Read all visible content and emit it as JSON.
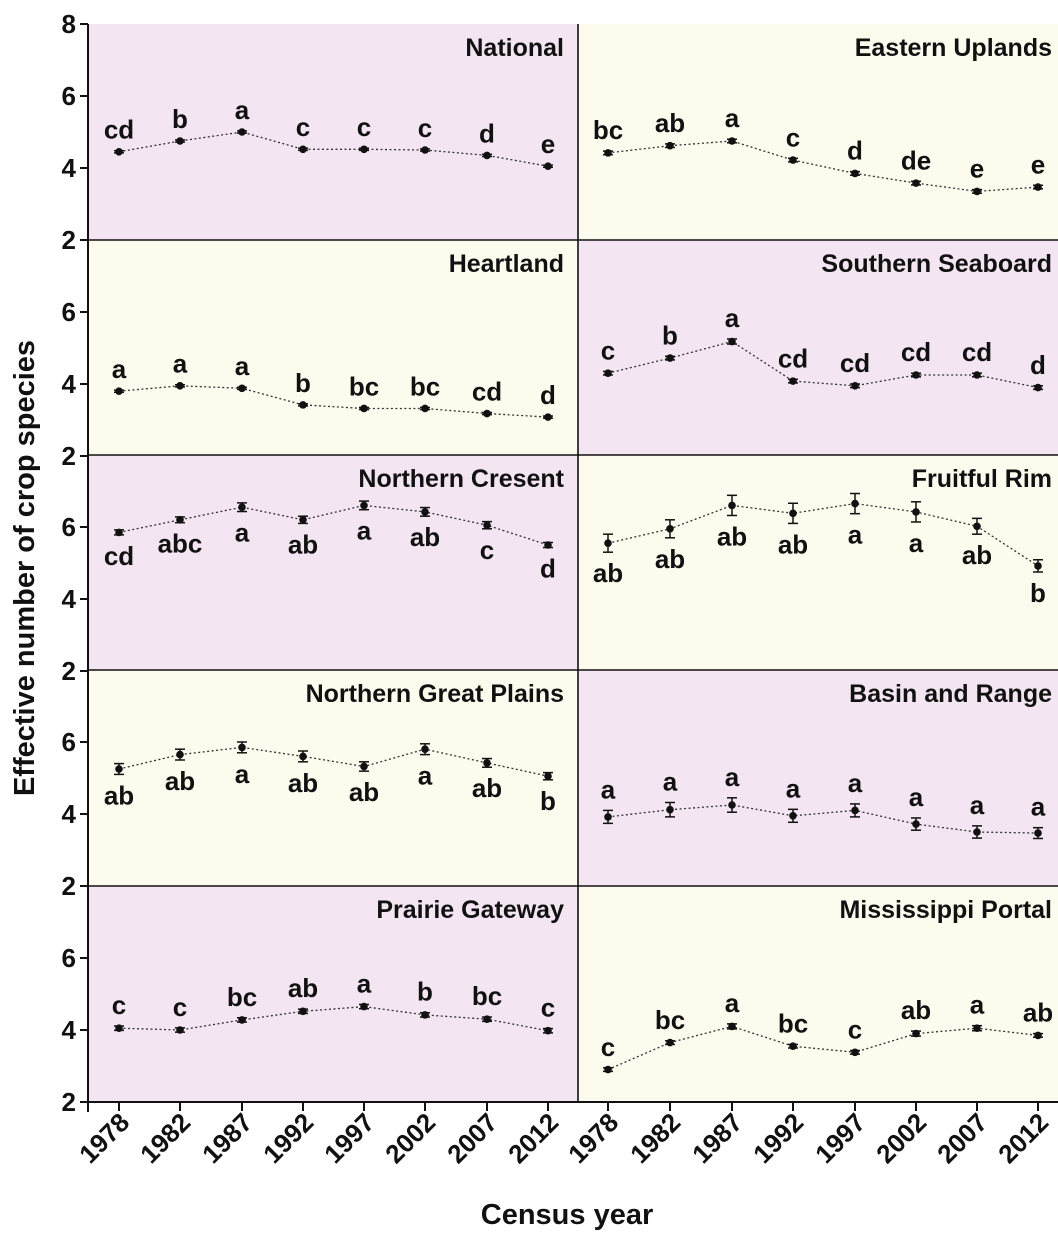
{
  "colors": {
    "pink": "#f3e5f1",
    "yellow": "#fcfbed",
    "line": "#333333",
    "point": "#111111"
  },
  "chart_data": {
    "type": "line",
    "xlabel": "Census year",
    "ylabel": "Effective number of crop species",
    "x": [
      "1978",
      "1982",
      "1987",
      "1992",
      "1997",
      "2002",
      "2007",
      "2012"
    ],
    "yticks": [
      "2",
      "4",
      "6",
      "8"
    ],
    "ylim": [
      2,
      8
    ],
    "grid": false,
    "panels": [
      {
        "title": "National",
        "background": "pink",
        "values": [
          4.45,
          4.75,
          5.0,
          4.52,
          4.52,
          4.5,
          4.35,
          4.05
        ],
        "err": [
          0.03,
          0.03,
          0.03,
          0.03,
          0.03,
          0.03,
          0.03,
          0.03
        ],
        "letters": [
          "cd",
          "b",
          "a",
          "c",
          "c",
          "c",
          "d",
          "e"
        ],
        "letter_pos": "above"
      },
      {
        "title": "Eastern Uplands",
        "background": "yellow",
        "values": [
          4.42,
          4.62,
          4.75,
          4.22,
          3.85,
          3.58,
          3.35,
          3.47
        ],
        "err": [
          0.05,
          0.05,
          0.05,
          0.05,
          0.05,
          0.05,
          0.05,
          0.05
        ],
        "letters": [
          "bc",
          "ab",
          "a",
          "c",
          "d",
          "de",
          "e",
          "e"
        ],
        "letter_pos": "above"
      },
      {
        "title": "Heartland",
        "background": "yellow",
        "values": [
          3.8,
          3.95,
          3.88,
          3.42,
          3.32,
          3.32,
          3.18,
          3.08
        ],
        "err": [
          0.03,
          0.03,
          0.03,
          0.03,
          0.03,
          0.03,
          0.03,
          0.03
        ],
        "letters": [
          "a",
          "a",
          "a",
          "b",
          "bc",
          "bc",
          "cd",
          "d"
        ],
        "letter_pos": "above"
      },
      {
        "title": "Southern Seaboard",
        "background": "pink",
        "values": [
          4.3,
          4.72,
          5.18,
          4.08,
          3.95,
          4.25,
          4.25,
          3.9
        ],
        "err": [
          0.05,
          0.05,
          0.07,
          0.05,
          0.05,
          0.05,
          0.05,
          0.05
        ],
        "letters": [
          "c",
          "b",
          "a",
          "cd",
          "cd",
          "cd",
          "cd",
          "d"
        ],
        "letter_pos": "above"
      },
      {
        "title": "Northern Cresent",
        "background": "pink",
        "values": [
          5.85,
          6.2,
          6.55,
          6.2,
          6.6,
          6.42,
          6.05,
          5.5
        ],
        "err": [
          0.07,
          0.08,
          0.12,
          0.1,
          0.12,
          0.12,
          0.1,
          0.07
        ],
        "letters": [
          "cd",
          "abc",
          "a",
          "ab",
          "a",
          "ab",
          "c",
          "d"
        ],
        "letter_pos": "below"
      },
      {
        "title": "Fruitful  Rim",
        "background": "yellow",
        "values": [
          5.55,
          5.95,
          6.6,
          6.38,
          6.65,
          6.42,
          6.02,
          4.92
        ],
        "err": [
          0.25,
          0.25,
          0.28,
          0.28,
          0.28,
          0.28,
          0.22,
          0.17
        ],
        "letters": [
          "ab",
          "ab",
          "ab",
          "ab",
          "a",
          "a",
          "ab",
          "b"
        ],
        "letter_pos": "below"
      },
      {
        "title": "Northern Great Plains",
        "background": "yellow",
        "values": [
          5.25,
          5.65,
          5.85,
          5.6,
          5.32,
          5.8,
          5.42,
          5.05
        ],
        "err": [
          0.15,
          0.15,
          0.15,
          0.15,
          0.13,
          0.15,
          0.12,
          0.1
        ],
        "letters": [
          "ab",
          "ab",
          "a",
          "ab",
          "ab",
          "a",
          "ab",
          "b"
        ],
        "letter_pos": "below"
      },
      {
        "title": "Basin and Range",
        "background": "pink",
        "values": [
          3.92,
          4.12,
          4.25,
          3.95,
          4.1,
          3.72,
          3.5,
          3.47
        ],
        "err": [
          0.18,
          0.2,
          0.2,
          0.18,
          0.18,
          0.17,
          0.17,
          0.15
        ],
        "letters": [
          "a",
          "a",
          "a",
          "a",
          "a",
          "a",
          "a",
          "a"
        ],
        "letter_pos": "above"
      },
      {
        "title": "Prairie Gateway",
        "background": "pink",
        "values": [
          4.05,
          4.0,
          4.28,
          4.52,
          4.65,
          4.42,
          4.3,
          3.98
        ],
        "err": [
          0.06,
          0.06,
          0.06,
          0.06,
          0.06,
          0.06,
          0.06,
          0.06
        ],
        "letters": [
          "c",
          "c",
          "bc",
          "ab",
          "a",
          "b",
          "bc",
          "c"
        ],
        "letter_pos": "above"
      },
      {
        "title": "Mississippi Portal",
        "background": "yellow",
        "values": [
          2.9,
          3.65,
          4.1,
          3.55,
          3.38,
          3.9,
          4.05,
          3.85
        ],
        "err": [
          0.05,
          0.05,
          0.07,
          0.05,
          0.05,
          0.07,
          0.07,
          0.05
        ],
        "letters": [
          "c",
          "bc",
          "a",
          "bc",
          "c",
          "ab",
          "a",
          "ab"
        ],
        "letter_pos": "above"
      }
    ]
  }
}
